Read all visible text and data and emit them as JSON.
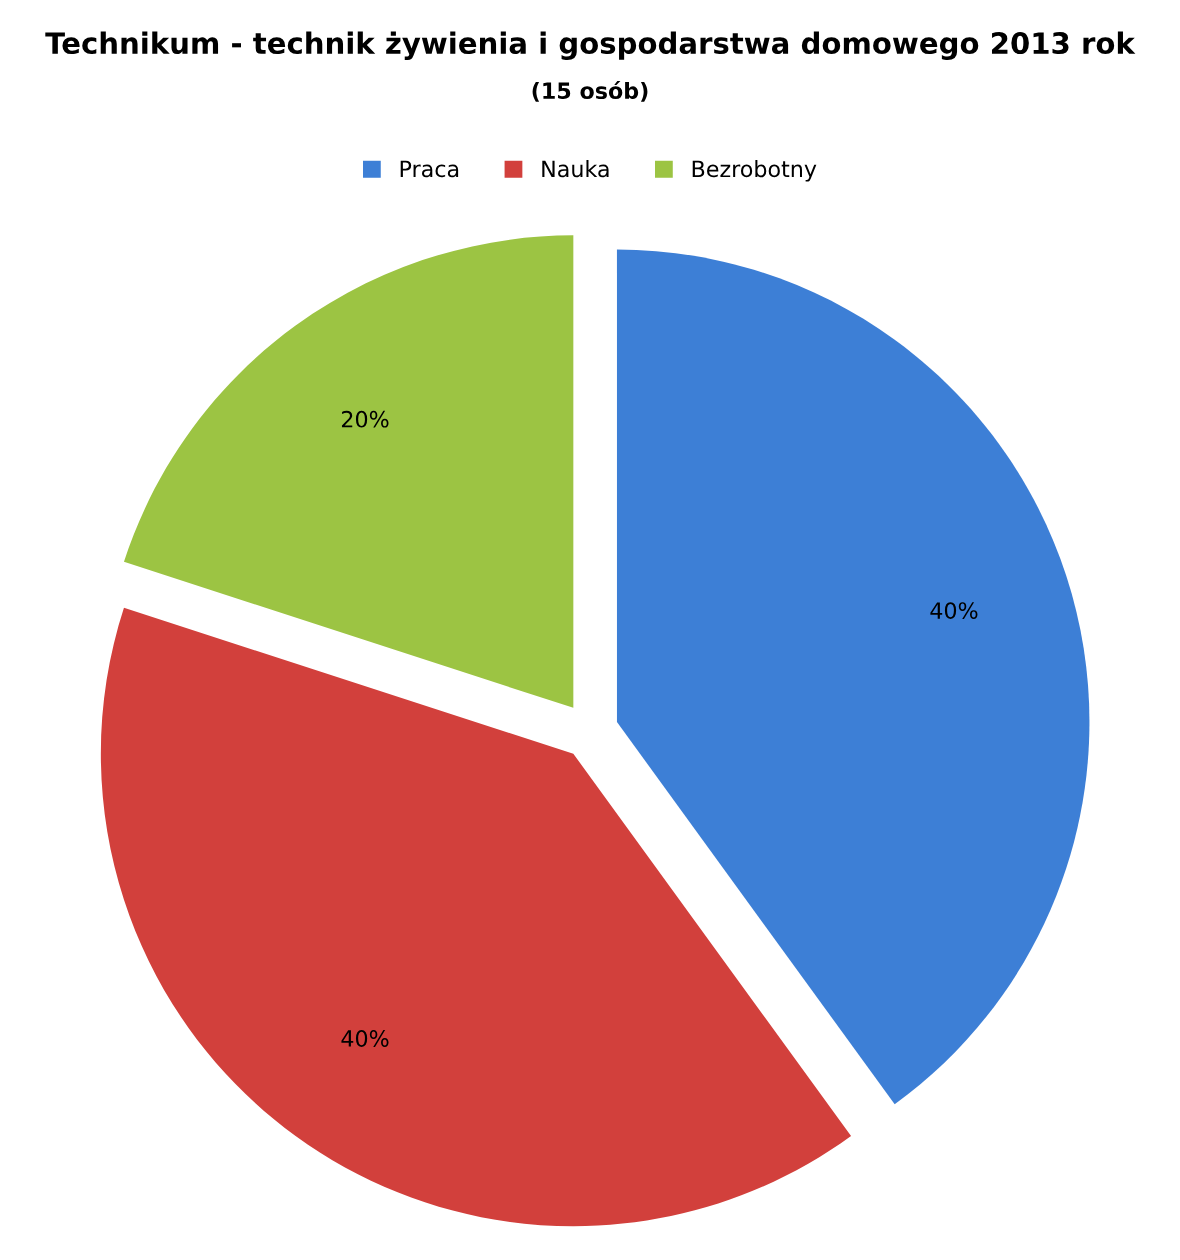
{
  "chart_data": {
    "type": "pie",
    "title": "Technikum - technik żywienia i gospodarstwa domowego 2013 rok",
    "subtitle": "(15 osób)",
    "categories": [
      "Praca",
      "Nauka",
      "Bezrobotny"
    ],
    "values": [
      40,
      40,
      20
    ],
    "colors": [
      "#3d7fd6",
      "#d2403c",
      "#9cc443"
    ],
    "value_labels": [
      "40%",
      "40%",
      "20%"
    ],
    "legend": "top"
  }
}
